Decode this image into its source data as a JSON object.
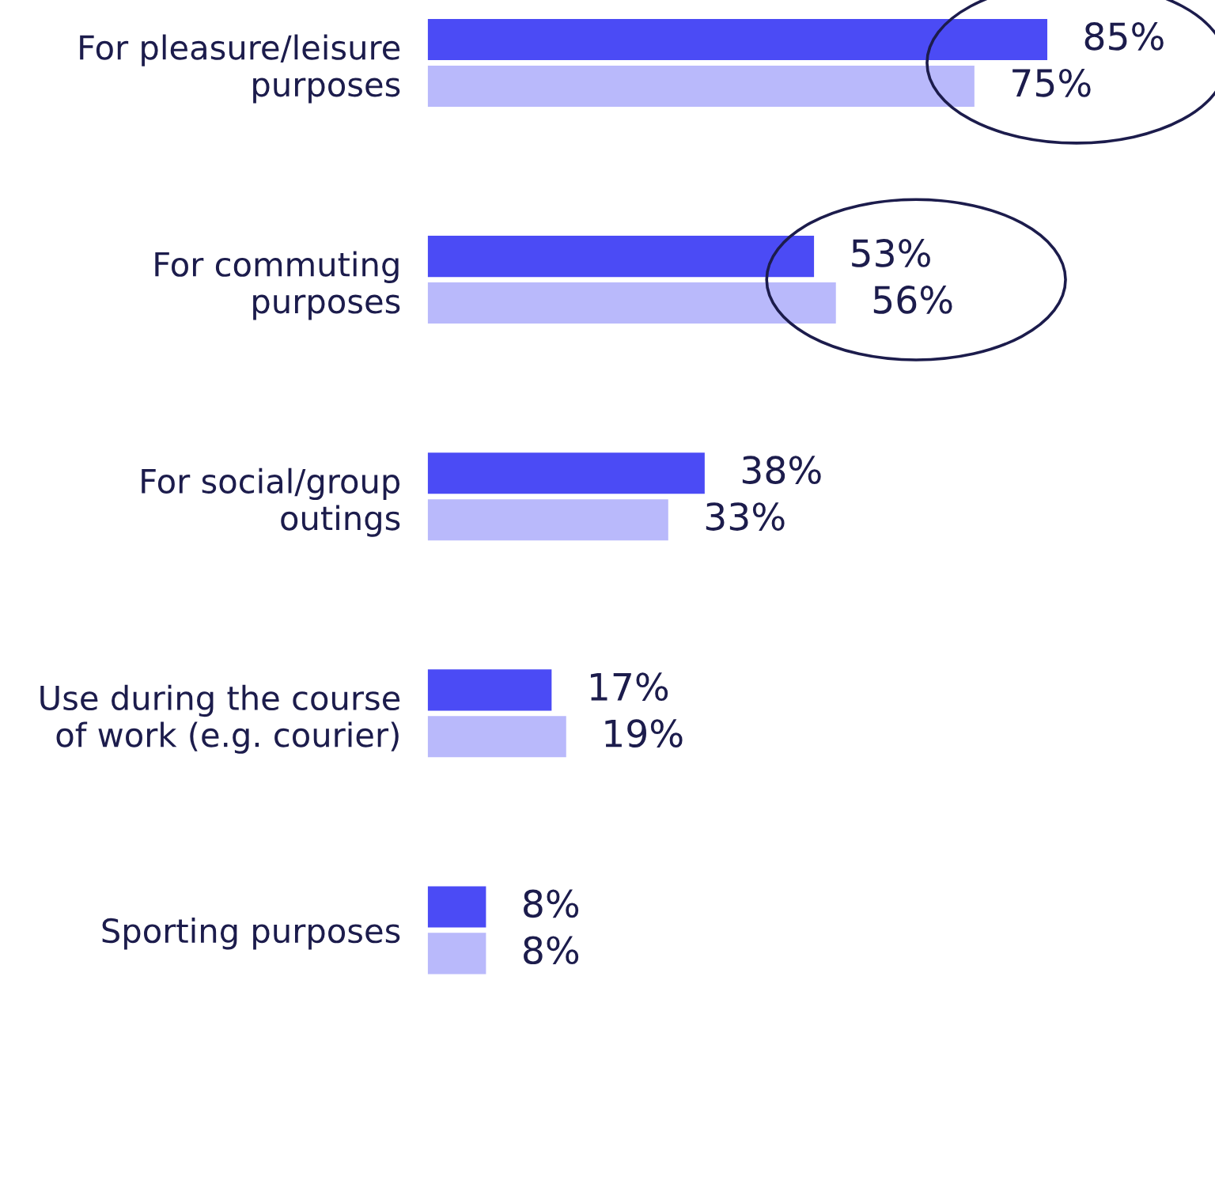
{
  "chart_data": {
    "type": "bar",
    "orientation": "horizontal",
    "grid": false,
    "legend": false,
    "categories": [
      "For pleasure/leisure\npurposes",
      "For commuting\npurposes",
      "For social/group\noutings",
      "Use during the course\nof work (e.g. courier)",
      "Sporting purposes"
    ],
    "series": [
      {
        "color": "#4b4bf5",
        "values": [
          85,
          53,
          38,
          17,
          8
        ],
        "value_labels": [
          "85%",
          "53%",
          "38%",
          "17%",
          "8%"
        ]
      },
      {
        "color": "#b9b9fb",
        "values": [
          75,
          56,
          33,
          19,
          8
        ],
        "value_labels": [
          "75%",
          "56%",
          "33%",
          "19%",
          "8%"
        ]
      }
    ]
  }
}
